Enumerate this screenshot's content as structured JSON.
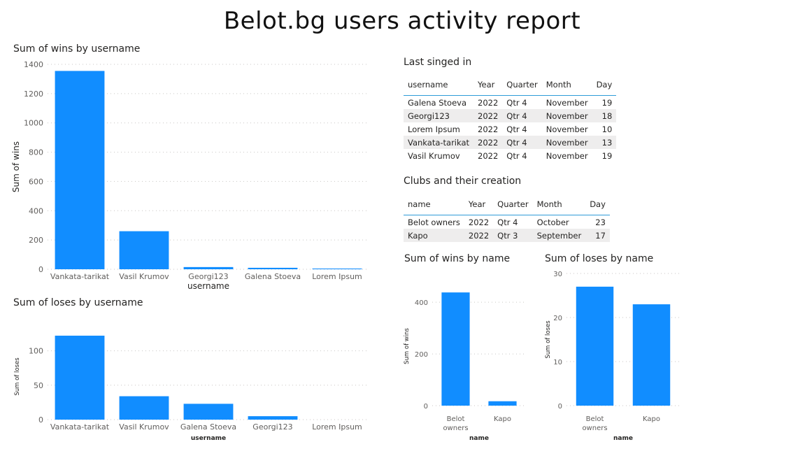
{
  "report_title": "Belot.bg users activity report",
  "colors": {
    "bar": "#118dff",
    "header_rule": "#2e9bd8",
    "alt_row": "#eeeded"
  },
  "last_signed_table": {
    "title": "Last singed in",
    "columns": [
      "username",
      "Year",
      "Quarter",
      "Month",
      "Day"
    ],
    "rows": [
      [
        "Galena Stoeva",
        "2022",
        "Qtr 4",
        "November",
        "19"
      ],
      [
        "Georgi123",
        "2022",
        "Qtr 4",
        "November",
        "18"
      ],
      [
        "Lorem Ipsum",
        "2022",
        "Qtr 4",
        "November",
        "10"
      ],
      [
        "Vankata-tarikat",
        "2022",
        "Qtr 4",
        "November",
        "13"
      ],
      [
        "Vasil Krumov",
        "2022",
        "Qtr 4",
        "November",
        "19"
      ]
    ]
  },
  "clubs_table": {
    "title": "Clubs and their creation",
    "columns": [
      "name",
      "Year",
      "Quarter",
      "Month",
      "Day"
    ],
    "rows": [
      [
        "Belot owners",
        "2022",
        "Qtr 4",
        "October",
        "23"
      ],
      [
        "Kapo",
        "2022",
        "Qtr 3",
        "September",
        "17"
      ]
    ]
  },
  "chart_data": [
    {
      "id": "wins_by_username",
      "type": "bar",
      "title": "Sum of wins by username",
      "xlabel": "username",
      "ylabel": "Sum of wins",
      "categories": [
        "Vankata-tarikat",
        "Vasil Krumov",
        "Georgi123",
        "Galena Stoeva",
        "Lorem Ipsum"
      ],
      "values": [
        1355,
        260,
        15,
        10,
        5
      ],
      "ylim": [
        0,
        1400
      ],
      "yticks": [
        0,
        200,
        400,
        600,
        800,
        1000,
        1200,
        1400
      ],
      "grid": true
    },
    {
      "id": "loses_by_username",
      "type": "bar",
      "title": "Sum of loses by username",
      "xlabel": "username",
      "ylabel": "Sum of loses",
      "categories": [
        "Vankata-tarikat",
        "Vasil Krumov",
        "Galena Stoeva",
        "Georgi123",
        "Lorem Ipsum"
      ],
      "values": [
        122,
        34,
        23,
        5,
        0
      ],
      "ylim": [
        0,
        125
      ],
      "yticks": [
        0,
        50,
        100
      ],
      "grid": true
    },
    {
      "id": "wins_by_name",
      "type": "bar",
      "title": "Sum of wins by name",
      "xlabel": "name",
      "ylabel": "Sum of wins",
      "categories": [
        "Belot owners",
        "Kapo"
      ],
      "values": [
        438,
        17
      ],
      "ylim": [
        0,
        460
      ],
      "yticks": [
        0,
        200,
        400
      ],
      "grid": true
    },
    {
      "id": "loses_by_name",
      "type": "bar",
      "title": "Sum of loses by name",
      "xlabel": "name",
      "ylabel": "Sum of loses",
      "categories": [
        "Belot owners",
        "Kapo"
      ],
      "values": [
        27,
        23
      ],
      "ylim": [
        0,
        30
      ],
      "yticks": [
        0,
        10,
        20,
        30
      ],
      "grid": true
    }
  ]
}
